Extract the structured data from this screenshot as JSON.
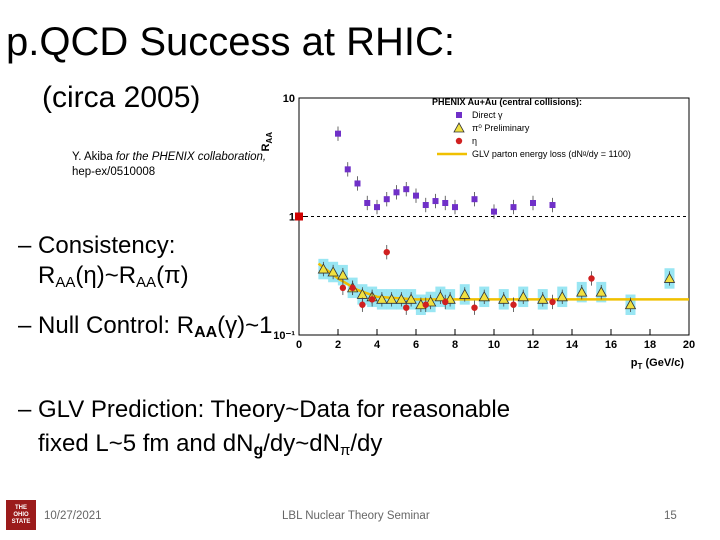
{
  "slide": {
    "title": "p.QCD Success at RHIC:",
    "subtitle": "(circa 2005)",
    "citation_author": "Y. Akiba ",
    "citation_collab": "for the PHENIX collaboration,",
    "citation_ref": "hep-ex/0510008",
    "bullet1_prefix": "– Consistency:",
    "bullet1_line2": [
      "R",
      "AA",
      "(η)~R",
      "AA",
      "(π)"
    ],
    "bullet2": [
      "– Null Control: R",
      "AA",
      "(γ)~1"
    ],
    "bullet3_line1": "– GLV Prediction: Theory~Data for reasonable",
    "bullet3_line2": [
      "fixed L~5 fm and dN",
      "g",
      "/dy~dN",
      "π",
      "/dy"
    ],
    "footer_date": "10/27/2021",
    "footer_center": "LBL Nuclear Theory Seminar",
    "footer_page": "15",
    "logo_lines": [
      "THE",
      "OHIO",
      "STATE"
    ]
  },
  "chart_data": {
    "type": "scatter",
    "title": "PHENIX Au+Au (central collisions):",
    "xlabel": "p",
    "xlabel_sub": "T",
    "xlabel_unit": " (GeV/c)",
    "ylabel": "R",
    "ylabel_sub": "AA",
    "xlim": [
      0,
      20
    ],
    "ylim": [
      0.1,
      10
    ],
    "yscale": "log",
    "x_ticks": [
      0,
      2,
      4,
      6,
      8,
      10,
      12,
      14,
      16,
      18,
      20
    ],
    "y_tick_labels": [
      "10",
      "1",
      "10⁻¹"
    ],
    "y_tick_values": [
      10,
      1,
      0.1
    ],
    "legend_position": "top-right",
    "legend": [
      {
        "label": "Direct γ",
        "marker": "square",
        "color": "#7030c8"
      },
      {
        "label": "π⁰ Preliminary",
        "marker": "triangle",
        "color": "#f0e040"
      },
      {
        "label": "η",
        "marker": "circle",
        "color": "#d02020"
      },
      {
        "label": "GLV parton energy loss (dNᵍ/dy = 1100)",
        "marker": "line",
        "color": "#f0c000"
      }
    ],
    "series": [
      {
        "name": "Direct γ",
        "color": "#7030c8",
        "marker": "square",
        "x": [
          2.0,
          2.5,
          3.0,
          3.5,
          4.0,
          4.5,
          5.0,
          5.5,
          6.0,
          6.5,
          7.0,
          7.5,
          8.0,
          9.0,
          10.0,
          11.0,
          12.0,
          13.0
        ],
        "y": [
          5.0,
          2.5,
          1.9,
          1.3,
          1.2,
          1.4,
          1.6,
          1.7,
          1.5,
          1.25,
          1.35,
          1.3,
          1.2,
          1.4,
          1.1,
          1.2,
          1.3,
          1.25
        ]
      },
      {
        "name": "π⁰ Preliminary",
        "color": "#f0e040",
        "marker": "triangle",
        "x": [
          1.25,
          1.75,
          2.25,
          2.75,
          3.25,
          3.75,
          4.25,
          4.75,
          5.25,
          5.75,
          6.25,
          6.75,
          7.25,
          7.75,
          8.5,
          9.5,
          10.5,
          11.5,
          12.5,
          13.5,
          14.5,
          15.5,
          17.0,
          19.0
        ],
        "y": [
          0.36,
          0.34,
          0.32,
          0.25,
          0.22,
          0.21,
          0.2,
          0.2,
          0.2,
          0.2,
          0.18,
          0.19,
          0.21,
          0.2,
          0.22,
          0.21,
          0.2,
          0.21,
          0.2,
          0.21,
          0.23,
          0.23,
          0.18,
          0.3
        ]
      },
      {
        "name": "η",
        "color": "#d02020",
        "marker": "circle",
        "x": [
          2.25,
          2.75,
          3.25,
          3.75,
          4.5,
          5.5,
          6.5,
          7.5,
          9.0,
          11.0,
          13.0,
          15.0
        ],
        "y": [
          0.25,
          0.25,
          0.18,
          0.2,
          0.5,
          0.17,
          0.18,
          0.19,
          0.17,
          0.18,
          0.19,
          0.3
        ]
      },
      {
        "name": "GLV parton energy loss (dNᵍ/dy = 1100)",
        "color": "#f0c000",
        "marker": "line",
        "x": [
          1.0,
          2.0,
          3.0,
          4.0,
          6.0,
          8.0,
          10.0,
          12.0,
          14.0,
          16.0,
          18.0,
          20.0
        ],
        "y": [
          0.4,
          0.3,
          0.24,
          0.21,
          0.2,
          0.2,
          0.2,
          0.2,
          0.2,
          0.2,
          0.2,
          0.2
        ]
      }
    ]
  }
}
